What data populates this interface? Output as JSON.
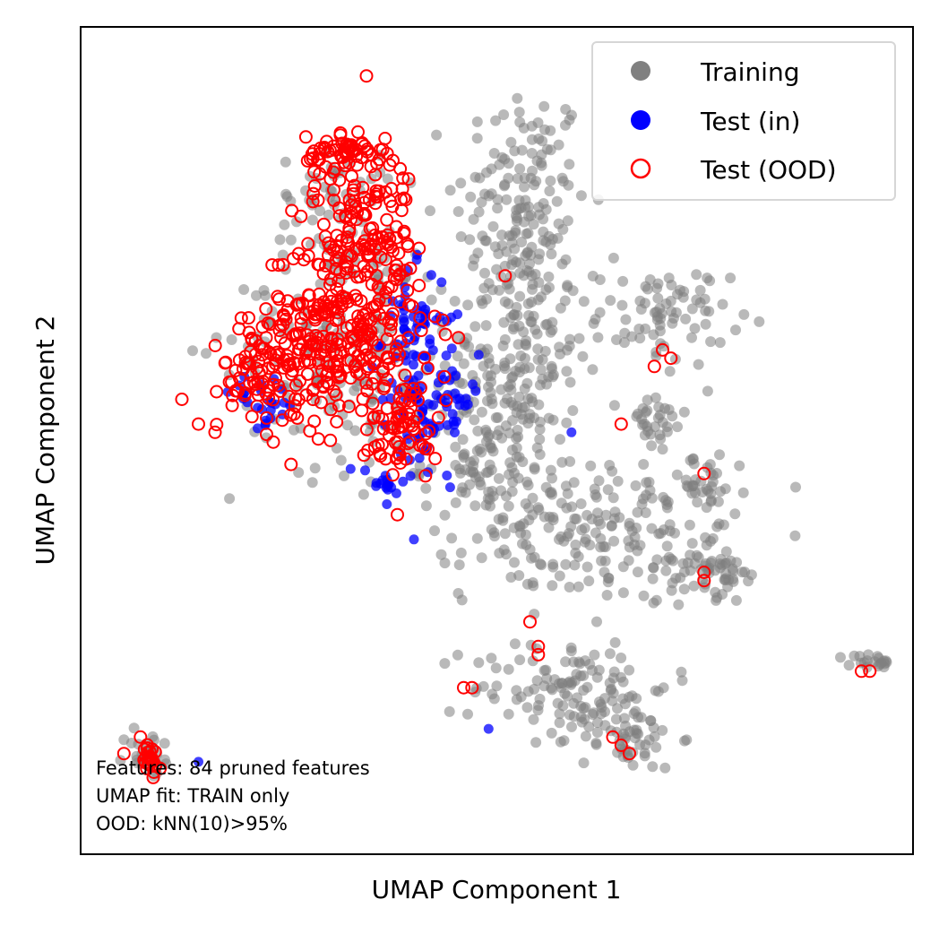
{
  "chart_data": {
    "type": "scatter",
    "title": "",
    "xlabel": "UMAP Component 1",
    "ylabel": "UMAP Component 2",
    "xlim": [
      0,
      100
    ],
    "ylim": [
      0,
      100
    ],
    "xticks": "none",
    "yticks": "none",
    "grid": false,
    "legend_position": "top-right",
    "legend": [
      {
        "name": "Training",
        "marker": "filled-circle",
        "color": "#808080"
      },
      {
        "name": "Test (in)",
        "marker": "filled-circle",
        "color": "#0000ff"
      },
      {
        "name": "Test (OOD)",
        "marker": "open-circle",
        "color": "#ff0000"
      }
    ],
    "annotation_lines": [
      "Features: 84 pruned features",
      "UMAP fit: TRAIN only",
      "OOD: kNN(10)>95%"
    ],
    "series": [
      {
        "name": "Training",
        "color": "#808080",
        "marker": "filled",
        "clusters": [
          {
            "cx": 53,
            "cy": 78,
            "sx": 4,
            "sy": 8,
            "n": 160
          },
          {
            "cx": 52,
            "cy": 60,
            "sx": 4,
            "sy": 7,
            "n": 160
          },
          {
            "cx": 49,
            "cy": 48,
            "sx": 4,
            "sy": 5,
            "n": 110
          },
          {
            "cx": 62,
            "cy": 39,
            "sx": 8,
            "sy": 4,
            "n": 180
          },
          {
            "cx": 70,
            "cy": 65,
            "sx": 4,
            "sy": 3,
            "n": 80
          },
          {
            "cx": 69,
            "cy": 52,
            "sx": 2,
            "sy": 2,
            "n": 30
          },
          {
            "cx": 75,
            "cy": 45,
            "sx": 2.5,
            "sy": 1.5,
            "n": 30
          },
          {
            "cx": 74,
            "cy": 35,
            "sx": 3,
            "sy": 2,
            "n": 40
          },
          {
            "cx": 77,
            "cy": 33,
            "sx": 1.5,
            "sy": 1.5,
            "n": 25
          },
          {
            "cx": 59,
            "cy": 20,
            "sx": 6,
            "sy": 3,
            "n": 120
          },
          {
            "cx": 66,
            "cy": 14,
            "sx": 3,
            "sy": 2,
            "n": 50
          },
          {
            "cx": 95,
            "cy": 23,
            "sx": 1.5,
            "sy": 0.6,
            "n": 20
          },
          {
            "cx": 8,
            "cy": 12,
            "sx": 1.5,
            "sy": 1.5,
            "n": 25
          },
          {
            "cx": 32,
            "cy": 62,
            "sx": 7,
            "sy": 8,
            "n": 180
          },
          {
            "cx": 30,
            "cy": 80,
            "sx": 3,
            "sy": 3,
            "n": 40
          }
        ]
      },
      {
        "name": "Test (in)",
        "color": "#0000ff",
        "marker": "filled",
        "clusters": [
          {
            "cx": 42,
            "cy": 55,
            "sx": 3,
            "sy": 4,
            "n": 90
          },
          {
            "cx": 40,
            "cy": 65,
            "sx": 2,
            "sy": 3,
            "n": 40
          },
          {
            "cx": 22,
            "cy": 55,
            "sx": 2,
            "sy": 1.5,
            "n": 25
          },
          {
            "cx": 36,
            "cy": 44,
            "sx": 1.5,
            "sy": 1.5,
            "n": 15
          }
        ],
        "points": [
          [
            40,
            38
          ],
          [
            49,
            15
          ],
          [
            59,
            51
          ],
          [
            14,
            11
          ]
        ]
      },
      {
        "name": "Test (OOD)",
        "color": "#ff0000",
        "marker": "open",
        "clusters": [
          {
            "cx": 31,
            "cy": 63,
            "sx": 5,
            "sy": 6,
            "n": 320
          },
          {
            "cx": 34,
            "cy": 77,
            "sx": 3,
            "sy": 6,
            "n": 140
          },
          {
            "cx": 31,
            "cy": 85,
            "sx": 2,
            "sy": 1,
            "n": 40
          },
          {
            "cx": 22,
            "cy": 58,
            "sx": 2.5,
            "sy": 2.5,
            "n": 70
          },
          {
            "cx": 39,
            "cy": 52,
            "sx": 2,
            "sy": 2.5,
            "n": 60
          },
          {
            "cx": 8,
            "cy": 11,
            "sx": 0.7,
            "sy": 1.2,
            "n": 25
          }
        ],
        "points": [
          [
            12,
            55
          ],
          [
            14,
            52
          ],
          [
            16,
            51
          ],
          [
            38,
            41
          ],
          [
            51,
            70
          ],
          [
            65,
            52
          ],
          [
            70,
            61
          ],
          [
            71,
            60
          ],
          [
            69,
            59
          ],
          [
            75,
            46
          ],
          [
            75,
            34
          ],
          [
            75,
            33
          ],
          [
            54,
            28
          ],
          [
            55,
            25
          ],
          [
            55,
            24
          ],
          [
            46,
            20
          ],
          [
            47,
            20
          ],
          [
            64,
            14
          ],
          [
            65,
            13
          ],
          [
            66,
            12
          ],
          [
            94,
            22
          ],
          [
            95,
            22
          ],
          [
            7,
            14
          ],
          [
            5,
            12
          ]
        ]
      }
    ]
  }
}
